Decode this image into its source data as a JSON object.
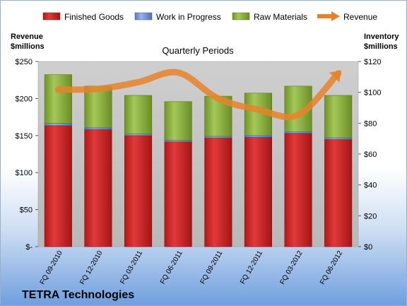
{
  "chart_data": {
    "type": "bar",
    "subtype": "stacked-bar-with-line",
    "company": "TETRA Technologies",
    "subtitle": "Quarterly Periods",
    "y_left_title": [
      "Revenue",
      "$millions"
    ],
    "y_right_title": [
      "Inventory",
      "$millions"
    ],
    "categories": [
      "FQ 09-2010",
      "FQ 12-2010",
      "FQ 03-2011",
      "FQ 06-2011",
      "FQ 09-2011",
      "FQ 12-2011",
      "FQ 03-2012",
      "FQ 06-2012"
    ],
    "left_axis": {
      "min": 0,
      "max": 250,
      "ticks": [
        0,
        50,
        100,
        150,
        200,
        250
      ],
      "tick_labels": [
        "$-",
        "$50",
        "$100",
        "$150",
        "$200",
        "$250"
      ]
    },
    "right_axis": {
      "min": 0,
      "max": 120,
      "ticks": [
        0,
        20,
        40,
        60,
        80,
        100,
        120
      ],
      "tick_labels": [
        "$0",
        "$20",
        "$40",
        "$60",
        "$80",
        "$100",
        "$120"
      ]
    },
    "series": [
      {
        "name": "Finished Goods",
        "axis": "right",
        "kind": "bar",
        "color": "#cc2222",
        "values": [
          78.5,
          76,
          72,
          68,
          70.5,
          71,
          73.5,
          69.5
        ]
      },
      {
        "name": "Work in Progress",
        "axis": "right",
        "kind": "bar",
        "color": "#6f8fcf",
        "values": [
          1.5,
          1,
          1,
          1,
          1,
          1,
          1,
          1
        ]
      },
      {
        "name": "Raw Materials",
        "axis": "right",
        "kind": "bar",
        "color": "#8fb33a",
        "values": [
          31.5,
          27,
          25,
          25,
          26,
          27.5,
          29.5,
          27.5
        ]
      },
      {
        "name": "Revenue",
        "axis": "left",
        "kind": "line",
        "color": "#e8822a",
        "values": [
          212,
          213,
          222,
          235,
          200,
          185,
          178,
          234
        ]
      }
    ],
    "legend_position": "top",
    "grid": false,
    "plot_background": "#c0c0c0"
  }
}
